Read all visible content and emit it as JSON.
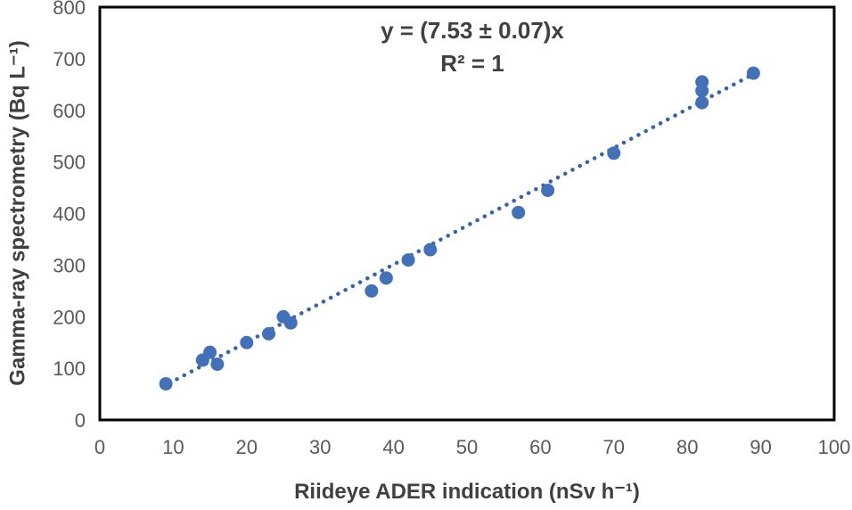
{
  "chart_data": {
    "type": "scatter",
    "annotation": {
      "equation": "y = (7.53 ± 0.07)x",
      "r_squared": "R² = 1"
    },
    "xlabel": "Riideye ADER indication (nSv h⁻¹)",
    "ylabel": "Gamma-ray spectrometry (Bq L⁻¹)",
    "xlim": [
      0,
      100
    ],
    "ylim": [
      0,
      800
    ],
    "x_ticks": [
      0,
      10,
      20,
      30,
      40,
      50,
      60,
      70,
      80,
      90,
      100
    ],
    "y_ticks": [
      0,
      100,
      200,
      300,
      400,
      500,
      600,
      700,
      800
    ],
    "grid": false,
    "legend_position": "none",
    "points": [
      {
        "x": 9,
        "y": 70
      },
      {
        "x": 14,
        "y": 116
      },
      {
        "x": 15,
        "y": 131
      },
      {
        "x": 16,
        "y": 108
      },
      {
        "x": 20,
        "y": 150
      },
      {
        "x": 23,
        "y": 167
      },
      {
        "x": 25,
        "y": 200
      },
      {
        "x": 26,
        "y": 188
      },
      {
        "x": 37,
        "y": 250
      },
      {
        "x": 39,
        "y": 275
      },
      {
        "x": 42,
        "y": 310
      },
      {
        "x": 45,
        "y": 330
      },
      {
        "x": 57,
        "y": 402
      },
      {
        "x": 61,
        "y": 445
      },
      {
        "x": 70,
        "y": 517
      },
      {
        "x": 82,
        "y": 655
      },
      {
        "x": 82,
        "y": 638
      },
      {
        "x": 82,
        "y": 615
      },
      {
        "x": 89,
        "y": 672
      }
    ],
    "trendline": {
      "type": "linear",
      "slope": 7.53,
      "intercept": 0,
      "x_start": 8.5,
      "x_end": 89.5,
      "style": "dotted"
    },
    "colors": {
      "marker": "#4271BA",
      "trendline": "#3563AE",
      "tick_text": "#595959",
      "axis_title_text": "#404040",
      "plot_border": "#000000",
      "background": "#FFFFFF"
    }
  }
}
